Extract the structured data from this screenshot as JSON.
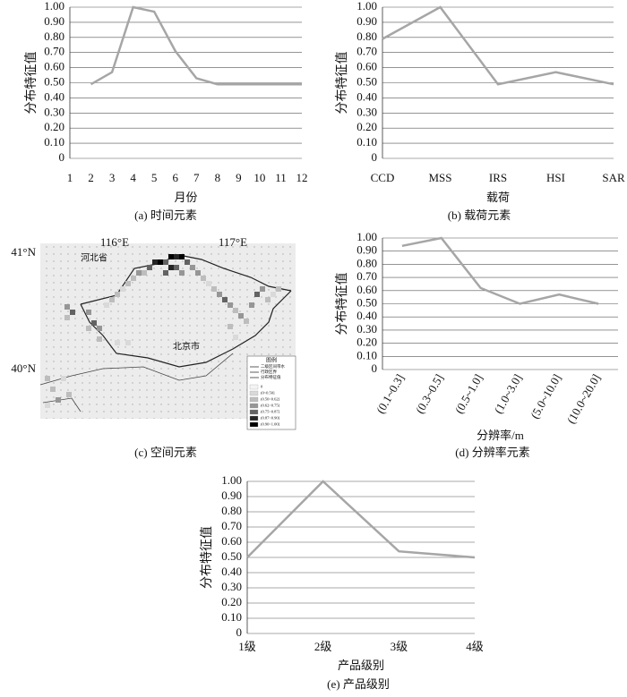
{
  "chart_data": [
    {
      "type": "line",
      "caption": "(a) 时间元素",
      "xlabel": "月份",
      "ylabel": "分布特征值",
      "x": [
        2,
        3,
        4,
        5,
        6,
        7,
        8,
        9,
        10,
        11,
        12
      ],
      "values": [
        0.49,
        0.57,
        1.0,
        0.97,
        0.71,
        0.53,
        0.49,
        0.49,
        0.49,
        0.49,
        0.49
      ],
      "color": "#a6a6a6",
      "grid": true,
      "xlim": [
        1,
        12
      ],
      "xticks": [
        1,
        2,
        3,
        4,
        5,
        6,
        7,
        8,
        9,
        10,
        11,
        12
      ],
      "ylim": [
        0,
        1
      ],
      "yticks": [
        {
          "value": 1,
          "label": "1.00"
        },
        {
          "value": 0.9,
          "label": "0.90"
        },
        {
          "value": 0.8,
          "label": "0.80"
        },
        {
          "value": 0.7,
          "label": "0.70"
        },
        {
          "value": 0.6,
          "label": "0.60"
        },
        {
          "value": 0.5,
          "label": "0.50"
        },
        {
          "value": 0.4,
          "label": "0.40"
        },
        {
          "value": 0.3,
          "label": "0.30"
        },
        {
          "value": 0.2,
          "label": "0.20"
        },
        {
          "value": 0.1,
          "label": "0.10"
        },
        0
      ]
    },
    {
      "type": "line",
      "caption": "(b) 载荷元素",
      "xlabel": "载荷",
      "ylabel": "分布特征值",
      "categories": [
        "CCD",
        "MSS",
        "IRS",
        "HSI",
        "SAR"
      ],
      "values": [
        0.79,
        1.0,
        0.49,
        0.57,
        0.49
      ],
      "color": "#a6a6a6",
      "grid": true,
      "ylim": [
        0,
        1
      ],
      "yticks": [
        {
          "value": 1,
          "label": "1.00"
        },
        {
          "value": 0.9,
          "label": "0.90"
        },
        {
          "value": 0.8,
          "label": "0.80"
        },
        {
          "value": 0.7,
          "label": "0.70"
        },
        {
          "value": 0.6,
          "label": "0.60"
        },
        {
          "value": 0.5,
          "label": "0.50"
        },
        {
          "value": 0.4,
          "label": "0.40"
        },
        {
          "value": 0.3,
          "label": "0.30"
        },
        {
          "value": 0.2,
          "label": "0.20"
        },
        {
          "value": 0.1,
          "label": "0.10"
        },
        0
      ]
    },
    {
      "type": "line",
      "caption": "(d) 分辨率元素",
      "xlabel": "分辨率/m",
      "ylabel": "分布特征值",
      "categories": [
        "(0.1~0.3]",
        "(0.3~0.5]",
        "(0.5~1.0]",
        "(1.0~3.0]",
        "(5.0~10.0]",
        "(10.0~20.0]"
      ],
      "values": [
        0.94,
        1.0,
        0.62,
        0.5,
        0.57,
        0.5
      ],
      "color": "#a6a6a6",
      "grid": true,
      "ylim": [
        0,
        1
      ],
      "yticks": [
        {
          "value": 1,
          "label": "1.00"
        },
        {
          "value": 0.9,
          "label": "0.90"
        },
        {
          "value": 0.8,
          "label": "0.80"
        },
        {
          "value": 0.7,
          "label": "0.70"
        },
        {
          "value": 0.6,
          "label": "0.60"
        },
        {
          "value": 0.5,
          "label": "0.50"
        },
        {
          "value": 0.4,
          "label": "0.40"
        },
        {
          "value": 0.3,
          "label": "0.30"
        },
        {
          "value": 0.2,
          "label": "0.20"
        },
        {
          "value": 0.1,
          "label": "0.10"
        },
        0
      ]
    },
    {
      "type": "line",
      "caption": "(e) 产品级别",
      "xlabel": "产品级别",
      "ylabel": "分布特征值",
      "categories": [
        "1级",
        "2级",
        "3级",
        "4级"
      ],
      "values": [
        0.5,
        1.0,
        0.54,
        0.5
      ],
      "color": "#a6a6a6",
      "grid": true,
      "ylim": [
        0,
        1
      ],
      "yticks": [
        {
          "value": 1,
          "label": "1.00"
        },
        {
          "value": 0.9,
          "label": "0.90"
        },
        {
          "value": 0.8,
          "label": "0.80"
        },
        {
          "value": 0.7,
          "label": "0.70"
        },
        {
          "value": 0.6,
          "label": "0.60"
        },
        {
          "value": 0.5,
          "label": "0.50"
        },
        {
          "value": 0.4,
          "label": "0.40"
        },
        {
          "value": 0.3,
          "label": "0.30"
        },
        {
          "value": 0.2,
          "label": "0.20"
        },
        {
          "value": 0.1,
          "label": "0.10"
        },
        0
      ]
    }
  ],
  "map": {
    "caption": "(c) 空间元素",
    "lon_labels": [
      "116°E",
      "117°E"
    ],
    "lat_labels": [
      "41°N",
      "40°N"
    ],
    "places": [
      "河北省",
      "北京市"
    ],
    "legend": {
      "title": "图例",
      "lines": [
        "二级区间带水",
        "行政区界",
        "分布特征值"
      ],
      "classes": [
        "0",
        "(0~0.50]",
        "(0.50~0.62]",
        "(0.62~0.75]",
        "(0.75~0.87]",
        "(0.87~0.90]",
        "(0.90~1.00]"
      ]
    }
  }
}
